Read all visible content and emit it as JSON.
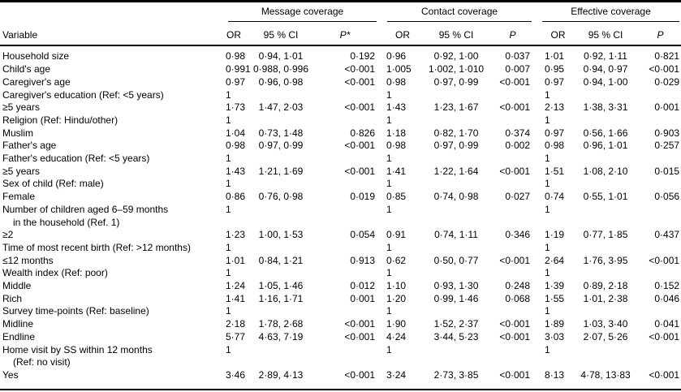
{
  "table": {
    "variable_header": "Variable",
    "groups": [
      {
        "label": "Message coverage",
        "headers": {
          "or": "OR",
          "ci": "95 % CI",
          "p": "P*"
        }
      },
      {
        "label": "Contact coverage",
        "headers": {
          "or": "OR",
          "ci": "95 % CI",
          "p": "P"
        }
      },
      {
        "label": "Effective coverage",
        "headers": {
          "or": "OR",
          "ci": "95 % CI",
          "p": "P"
        }
      }
    ],
    "rows": [
      {
        "label": "Household size",
        "cells": [
          "0·98",
          "0·94, 1·01",
          "0·192",
          "0·96",
          "0·92, 1·00",
          "0·037",
          "1·01",
          "0·92, 1·11",
          "0·821"
        ]
      },
      {
        "label": "Child's age",
        "cells": [
          "0·991",
          "0·988, 0·996",
          "<0·001",
          "1·005",
          "1·002, 1·010",
          "0·007",
          "0·95",
          "0·94, 0·97",
          "<0·001"
        ]
      },
      {
        "label": "Caregiver's age",
        "cells": [
          "0·97",
          "0·96, 0·98",
          "<0·001",
          "0·98",
          "0·97, 0·99",
          "<0·001",
          "0·97",
          "0·94, 1·00",
          "0·029"
        ]
      },
      {
        "label": "Caregiver's education (Ref: <5 years)",
        "cells": [
          "1",
          "",
          "",
          "1",
          "",
          "",
          "1",
          "",
          ""
        ]
      },
      {
        "label": "≥5 years",
        "cells": [
          "1·73",
          "1·47, 2·03",
          "<0·001",
          "1·43",
          "1·23, 1·67",
          "<0·001",
          "2·13",
          "1·38, 3·31",
          "0·001"
        ]
      },
      {
        "label": "Religion (Ref: Hindu/other)",
        "cells": [
          "1",
          "",
          "",
          "1",
          "",
          "",
          "1",
          "",
          ""
        ]
      },
      {
        "label": "Muslim",
        "cells": [
          "1·04",
          "0·73, 1·48",
          "0·826",
          "1·18",
          "0·82, 1·70",
          "0·374",
          "0·97",
          "0·56, 1·66",
          "0·903"
        ]
      },
      {
        "label": "Father's age",
        "cells": [
          "0·98",
          "0·97, 0·99",
          "<0·001",
          "0·98",
          "0·97, 0·99",
          "0·002",
          "0·98",
          "0·96, 1·01",
          "0·257"
        ]
      },
      {
        "label": "Father's education (Ref: <5 years)",
        "cells": [
          "1",
          "",
          "",
          "1",
          "",
          "",
          "1",
          "",
          ""
        ]
      },
      {
        "label": "≥5 years",
        "cells": [
          "1·43",
          "1·21, 1·69",
          "<0·001",
          "1·41",
          "1·22, 1·64",
          "<0·001",
          "1·51",
          "1·08, 2·10",
          "0·015"
        ]
      },
      {
        "label": "Sex of child (Ref: male)",
        "cells": [
          "1",
          "",
          "",
          "1",
          "",
          "",
          "1",
          "",
          ""
        ]
      },
      {
        "label": "Female",
        "cells": [
          "0·86",
          "0·76, 0·98",
          "0·019",
          "0·85",
          "0·74, 0·98",
          "0·027",
          "0·74",
          "0·55, 1·01",
          "0·056"
        ]
      },
      {
        "label": "Number of children aged 6–59 months",
        "label2": "in the household (Ref. 1)",
        "cells": [
          "1",
          "",
          "",
          "1",
          "",
          "",
          "1",
          "",
          ""
        ]
      },
      {
        "label": "≥2",
        "cells": [
          "1·23",
          "1·00, 1·53",
          "0·054",
          "0·91",
          "0·74, 1·11",
          "0·346",
          "1·19",
          "0·77, 1·85",
          "0·437"
        ]
      },
      {
        "label": "Time of most recent birth (Ref: >12 months)",
        "cells": [
          "1",
          "",
          "",
          "1",
          "",
          "",
          "1",
          "",
          ""
        ]
      },
      {
        "label": "≤12 months",
        "cells": [
          "1·01",
          "0·84, 1·21",
          "0·913",
          "0·62",
          "0·50, 0·77",
          "<0·001",
          "2·64",
          "1·76, 3·95",
          "<0·001"
        ]
      },
      {
        "label": "Wealth index (Ref: poor)",
        "cells": [
          "1",
          "",
          "",
          "1",
          "",
          "",
          "1",
          "",
          ""
        ]
      },
      {
        "label": "Middle",
        "cells": [
          "1·24",
          "1·05, 1·46",
          "0·012",
          "1·10",
          "0·93, 1·30",
          "0·248",
          "1·39",
          "0·89, 2·18",
          "0·152"
        ]
      },
      {
        "label": "Rich",
        "cells": [
          "1·41",
          "1·16, 1·71",
          "0·001",
          "1·20",
          "0·99, 1·46",
          "0·068",
          "1·55",
          "1·01, 2·38",
          "0·046"
        ]
      },
      {
        "label": "Survey time-points (Ref: baseline)",
        "cells": [
          "1",
          "",
          "",
          "1",
          "",
          "",
          "1",
          "",
          ""
        ]
      },
      {
        "label": "Midline",
        "cells": [
          "2·18",
          "1·78, 2·68",
          "<0·001",
          "1·90",
          "1·52, 2·37",
          "<0·001",
          "1·89",
          "1·03, 3·40",
          "0·041"
        ]
      },
      {
        "label": "Endline",
        "cells": [
          "5·77",
          "4·63, 7·19",
          "<0·001",
          "4·24",
          "3·44, 5·23",
          "<0·001",
          "3·03",
          "2·07, 5·26",
          "<0·001"
        ]
      },
      {
        "label": "Home visit by SS within 12 months",
        "label2": "(Ref: no visit)",
        "cells": [
          "1",
          "",
          "",
          "1",
          "",
          "",
          "1",
          "",
          ""
        ]
      },
      {
        "label": "Yes",
        "cells": [
          "3·46",
          "2·89, 4·13",
          "<0·001",
          "3·24",
          "2·73, 3·85",
          "<0·001",
          "8·13",
          "4·78, 13·83",
          "<0·001"
        ]
      }
    ]
  }
}
